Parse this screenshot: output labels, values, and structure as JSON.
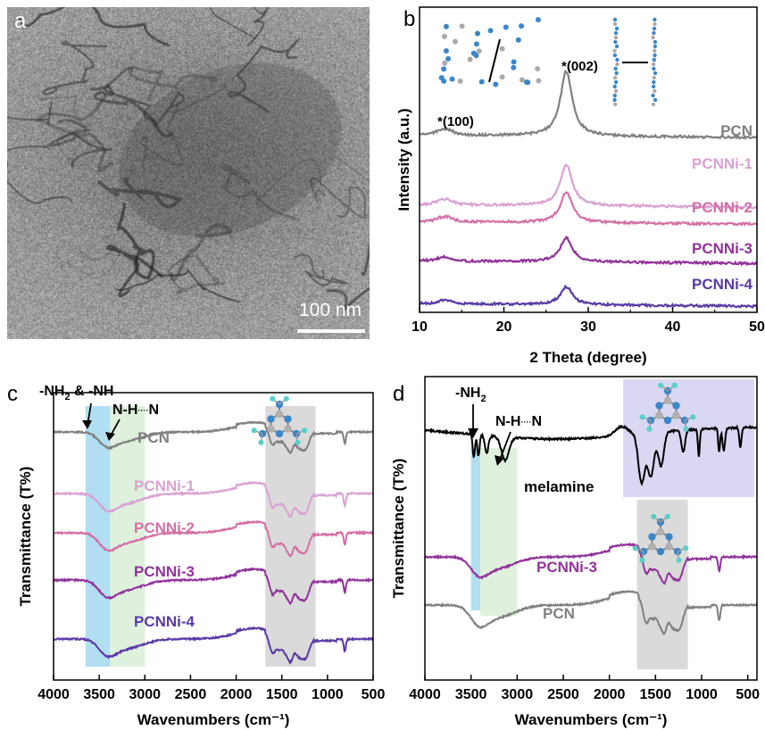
{
  "panels": {
    "a": {
      "letter": "a",
      "scalebar": "100 nm"
    },
    "b": {
      "letter": "b"
    },
    "c": {
      "letter": "c"
    },
    "d": {
      "letter": "d"
    }
  },
  "chart_data": [
    {
      "panel": "b",
      "type": "line",
      "xlabel": "2 Theta (degree)",
      "ylabel": "Intensity (a.u.)",
      "xlim": [
        10,
        50
      ],
      "xticks": [
        10,
        20,
        30,
        40,
        50
      ],
      "y_tick_labels": false,
      "grid": false,
      "legend": "curve labels at right",
      "series": [
        {
          "name": "PCN",
          "color": "#808080",
          "peak_100": {
            "x": 13.0,
            "height": 0.55
          },
          "peak_002": {
            "x": 27.4,
            "height": 2.7
          }
        },
        {
          "name": "PCNNi-1",
          "color": "#d9a2d3",
          "peak_100": {
            "x": 13.0,
            "height": 0.5
          },
          "peak_002": {
            "x": 27.4,
            "height": 1.7
          }
        },
        {
          "name": "PCNNi-2",
          "color": "#d46fa6",
          "peak_100": {
            "x": 13.0,
            "height": 0.45
          },
          "peak_002": {
            "x": 27.4,
            "height": 1.25
          }
        },
        {
          "name": "PCNNi-3",
          "color": "#92339b",
          "peak_100": {
            "x": 13.0,
            "height": 0.35
          },
          "peak_002": {
            "x": 27.4,
            "height": 1.0
          }
        },
        {
          "name": "PCNNi-4",
          "color": "#5a3aa5",
          "peak_100": {
            "x": 13.0,
            "height": 0.3
          },
          "peak_002": {
            "x": 27.4,
            "height": 0.75
          }
        }
      ],
      "annotations": [
        "*(100)",
        "*(002)"
      ]
    },
    {
      "panel": "c",
      "type": "line",
      "xlabel": "Wavenumbers (cm⁻¹)",
      "ylabel": "Transmittance (T%)",
      "xlim": [
        4000,
        500
      ],
      "xticks": [
        4000,
        3500,
        3000,
        2500,
        2000,
        1500,
        1000,
        500
      ],
      "y_tick_labels": false,
      "grid": false,
      "legend": "curve labels inline",
      "series": [
        {
          "name": "PCN",
          "color": "#808080"
        },
        {
          "name": "PCNNi-1",
          "color": "#d9a2d3"
        },
        {
          "name": "PCNNi-2",
          "color": "#d46fa6"
        },
        {
          "name": "PCNNi-3",
          "color": "#92339b"
        },
        {
          "name": "PCNNi-4",
          "color": "#5a3aa5"
        }
      ],
      "highlight_bands": [
        {
          "x": [
            3650,
            3380
          ],
          "color": "#a9dcef"
        },
        {
          "x": [
            3380,
            3000
          ],
          "color": "#dcefd9"
        },
        {
          "x": [
            1680,
            1130
          ],
          "color": "#d6d6d6"
        }
      ],
      "annotations": [
        "-NH",
        "2",
        " & -NH",
        "N-H",
        "····",
        "N"
      ]
    },
    {
      "panel": "d",
      "type": "line",
      "xlabel": "Wavenumbers (cm⁻¹)",
      "ylabel": "Transmittance (T%)",
      "xlim": [
        4000,
        400
      ],
      "xticks": [
        4000,
        3500,
        3000,
        2500,
        2000,
        1500,
        1000,
        500
      ],
      "y_tick_labels": false,
      "grid": false,
      "legend": "curve labels inline",
      "series": [
        {
          "name": "melamine",
          "color": "#000000"
        },
        {
          "name": "PCNNi-3",
          "color": "#92339b"
        },
        {
          "name": "PCN",
          "color": "#808080"
        }
      ],
      "highlight_bands": [
        {
          "x": [
            3500,
            3400
          ],
          "color": "#a9dcef"
        },
        {
          "x": [
            3400,
            3000
          ],
          "color": "#dcefd9"
        },
        {
          "x": [
            1700,
            1150
          ],
          "color": "#d6d6d6"
        },
        {
          "x": [
            1850,
            430
          ],
          "color": "#d5d3f0"
        }
      ],
      "annotations": [
        "-NH",
        "2",
        "N-H",
        "····",
        "N"
      ]
    }
  ]
}
